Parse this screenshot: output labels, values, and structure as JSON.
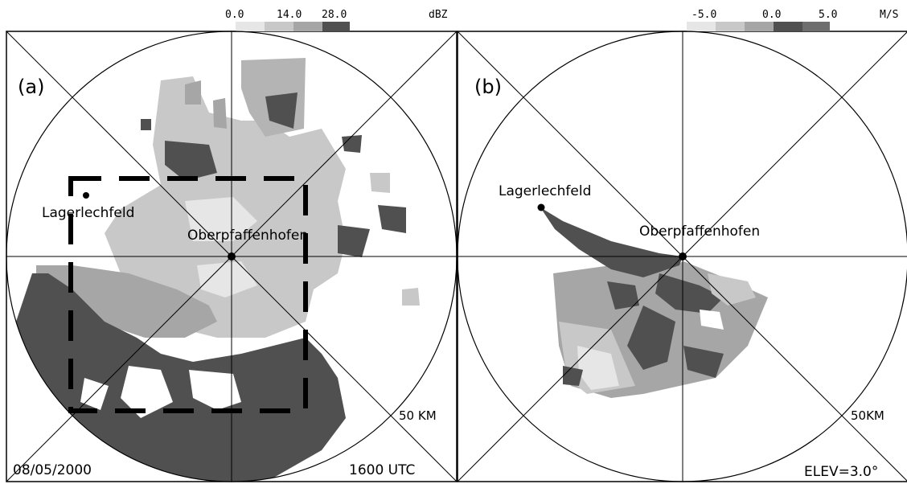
{
  "panel_a": {
    "label": "(a)",
    "colorbar": {
      "ticks": [
        "0.0",
        "14.0",
        "28.0"
      ],
      "unit": "dBZ",
      "colors": [
        "#e6e6e6",
        "#c8c8c8",
        "#a6a6a6",
        "#808080",
        "#505050"
      ]
    },
    "station_main": "Oberpfaffenhofen",
    "station_secondary": "Lagerlechfeld",
    "range_label": "50 KM",
    "date": "08/05/2000",
    "time": "1600 UTC"
  },
  "panel_b": {
    "label": "(b)",
    "colorbar": {
      "ticks": [
        "-5.0",
        "0.0",
        "5.0"
      ],
      "unit": "M/S",
      "colors": [
        "#e6e6e6",
        "#c8c8c8",
        "#a6a6a6",
        "#505050",
        "#6e6e6e"
      ]
    },
    "station_main": "Oberpfaffenhofen",
    "station_secondary": "Lagerlechfeld",
    "range_label": "50KM",
    "elevation": "ELEV=3.0°"
  }
}
